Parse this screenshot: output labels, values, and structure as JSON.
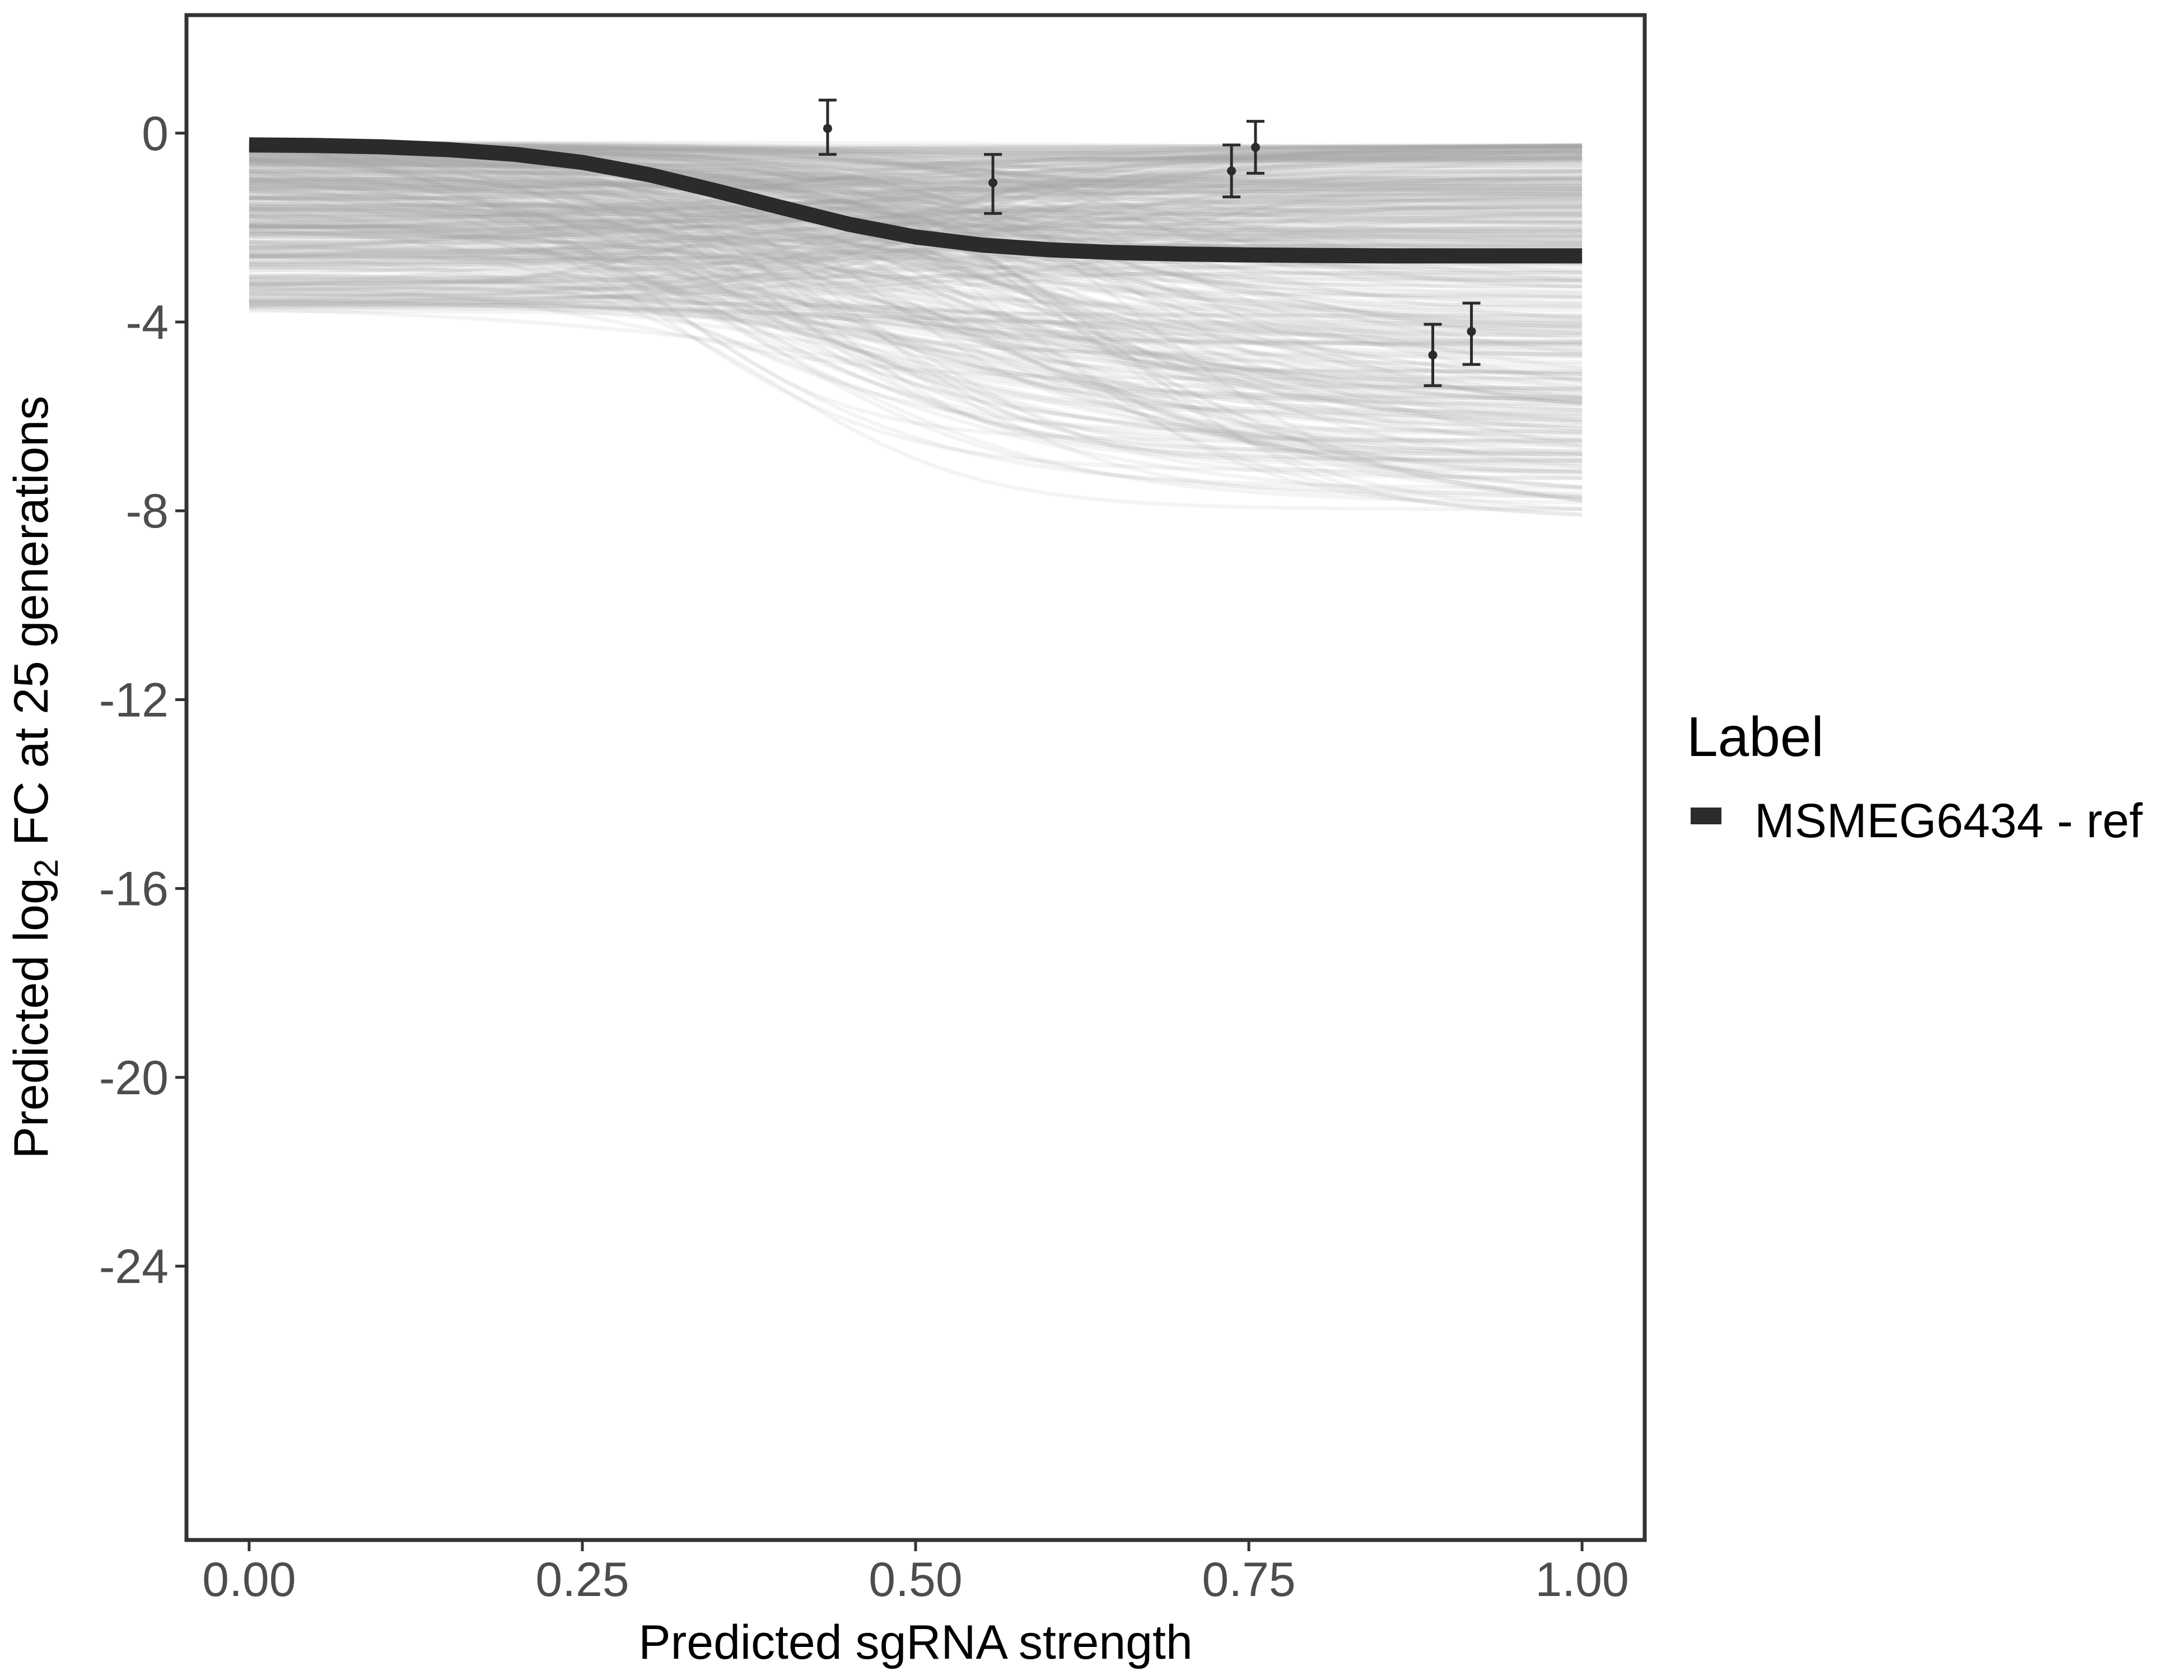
{
  "chart_data": {
    "type": "line",
    "title": "",
    "xlabel": "Predicted sgRNA strength",
    "ylabel": {
      "prefix": "Predicted  log",
      "subscript": "2",
      "suffix": " FC at 25 generations"
    },
    "xlim": [
      -0.047,
      1.047
    ],
    "ylim": [
      -29.8,
      2.5
    ],
    "x_ticks": [
      {
        "value": 0.0,
        "label": "0.00"
      },
      {
        "value": 0.25,
        "label": "0.25"
      },
      {
        "value": 0.5,
        "label": "0.50"
      },
      {
        "value": 0.75,
        "label": "0.75"
      },
      {
        "value": 1.0,
        "label": "1.00"
      }
    ],
    "y_ticks": [
      {
        "value": 0,
        "label": "0"
      },
      {
        "value": -4,
        "label": "-4"
      },
      {
        "value": -8,
        "label": "-8"
      },
      {
        "value": -12,
        "label": "-12"
      },
      {
        "value": -16,
        "label": "-16"
      },
      {
        "value": -20,
        "label": "-20"
      },
      {
        "value": -24,
        "label": "-24"
      }
    ],
    "grid": false,
    "legend": {
      "title": "Label",
      "placement": "right",
      "entries": [
        {
          "label": "MSMEG6434 - ref",
          "color": "#2b2b2b"
        }
      ]
    },
    "series": [
      {
        "name": "MSMEG6434 - ref",
        "color": "#2b2b2b",
        "x": [
          0.0,
          0.05,
          0.1,
          0.15,
          0.2,
          0.25,
          0.3,
          0.35,
          0.4,
          0.45,
          0.5,
          0.55,
          0.6,
          0.65,
          0.7,
          0.75,
          0.8,
          0.85,
          0.9,
          0.95,
          1.0
        ],
        "y": [
          -0.25,
          -0.26,
          -0.29,
          -0.35,
          -0.45,
          -0.62,
          -0.88,
          -1.22,
          -1.58,
          -1.93,
          -2.2,
          -2.37,
          -2.47,
          -2.53,
          -2.56,
          -2.58,
          -2.59,
          -2.6,
          -2.6,
          -2.6,
          -2.6
        ]
      }
    ],
    "observed_points": [
      {
        "x": 0.434,
        "y": 0.1,
        "ymin": -0.45,
        "ymax": 0.7
      },
      {
        "x": 0.558,
        "y": -1.05,
        "ymin": -1.7,
        "ymax": -0.45
      },
      {
        "x": 0.737,
        "y": -0.8,
        "ymin": -1.35,
        "ymax": -0.25
      },
      {
        "x": 0.755,
        "y": -0.3,
        "ymin": -0.85,
        "ymax": 0.25
      },
      {
        "x": 0.888,
        "y": -4.7,
        "ymin": -5.35,
        "ymax": -4.05
      },
      {
        "x": 0.917,
        "y": -4.2,
        "ymin": -4.9,
        "ymax": -3.6
      }
    ],
    "posterior_draws": {
      "color": "#a6a6a6",
      "count": 400,
      "y_at_x0_range": [
        -3.8,
        -0.2
      ],
      "y_at_x1_range": [
        -8.2,
        -0.25
      ]
    }
  }
}
